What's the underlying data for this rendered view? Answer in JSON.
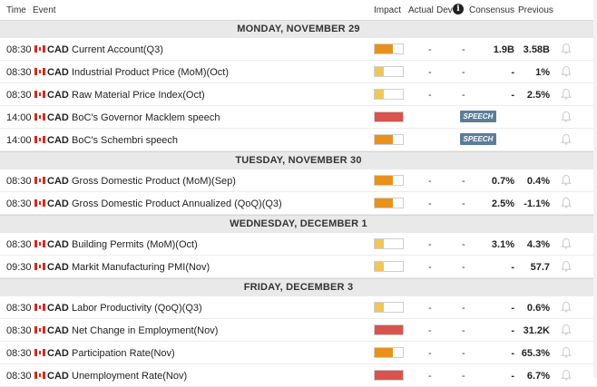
{
  "header": {
    "time": "Time",
    "event": "Event",
    "impact": "Impact",
    "actual": "Actual",
    "dev": "Dev",
    "info_icon": "i",
    "consensus": "Consensus",
    "previous": "Previous"
  },
  "colors": {
    "high": "#d9534f",
    "medium": "#e8921c",
    "low": "#f0c65a",
    "speech_badge": "#5b7d99"
  },
  "days": [
    {
      "label": "MONDAY, NOVEMBER 29",
      "events": [
        {
          "time": "08:30",
          "currency": "CAD",
          "name": "Current Account(Q3)",
          "impact": "medium",
          "impact_level": 0.66,
          "actual": "-",
          "dev": "-",
          "consensus": "1.9B",
          "previous": "3.58B"
        },
        {
          "time": "08:30",
          "currency": "CAD",
          "name": "Industrial Product Price (MoM)(Oct)",
          "impact": "low",
          "impact_level": 0.33,
          "actual": "-",
          "dev": "-",
          "consensus": "-",
          "previous": "1%"
        },
        {
          "time": "08:30",
          "currency": "CAD",
          "name": "Raw Material Price Index(Oct)",
          "impact": "low",
          "impact_level": 0.33,
          "actual": "-",
          "dev": "-",
          "consensus": "-",
          "previous": "2.5%"
        },
        {
          "time": "14:00",
          "currency": "CAD",
          "name": "BoC's Governor Macklem speech",
          "impact": "high",
          "impact_level": 1.0,
          "actual": "",
          "dev": "",
          "speech": "SPEECH",
          "consensus": "",
          "previous": ""
        },
        {
          "time": "14:00",
          "currency": "CAD",
          "name": "BoC's Schembri speech",
          "impact": "medium",
          "impact_level": 0.66,
          "actual": "",
          "dev": "",
          "speech": "SPEECH",
          "consensus": "",
          "previous": ""
        }
      ]
    },
    {
      "label": "TUESDAY, NOVEMBER 30",
      "events": [
        {
          "time": "08:30",
          "currency": "CAD",
          "name": "Gross Domestic Product (MoM)(Sep)",
          "impact": "medium",
          "impact_level": 0.66,
          "actual": "-",
          "dev": "-",
          "consensus": "0.7%",
          "previous": "0.4%"
        },
        {
          "time": "08:30",
          "currency": "CAD",
          "name": "Gross Domestic Product Annualized (QoQ)(Q3)",
          "impact": "medium",
          "impact_level": 0.66,
          "actual": "-",
          "dev": "-",
          "consensus": "2.5%",
          "previous": "-1.1%"
        }
      ]
    },
    {
      "label": "WEDNESDAY, DECEMBER 1",
      "events": [
        {
          "time": "08:30",
          "currency": "CAD",
          "name": "Building Permits (MoM)(Oct)",
          "impact": "low",
          "impact_level": 0.33,
          "actual": "-",
          "dev": "-",
          "consensus": "3.1%",
          "previous": "4.3%"
        },
        {
          "time": "09:30",
          "currency": "CAD",
          "name": "Markit Manufacturing PMI(Nov)",
          "impact": "low",
          "impact_level": 0.33,
          "actual": "-",
          "dev": "-",
          "consensus": "-",
          "previous": "57.7"
        }
      ]
    },
    {
      "label": "FRIDAY, DECEMBER 3",
      "events": [
        {
          "time": "08:30",
          "currency": "CAD",
          "name": "Labor Productivity (QoQ)(Q3)",
          "impact": "low",
          "impact_level": 0.33,
          "actual": "-",
          "dev": "-",
          "consensus": "-",
          "previous": "0.6%"
        },
        {
          "time": "08:30",
          "currency": "CAD",
          "name": "Net Change in Employment(Nov)",
          "impact": "high",
          "impact_level": 1.0,
          "actual": "-",
          "dev": "-",
          "consensus": "-",
          "previous": "31.2K"
        },
        {
          "time": "08:30",
          "currency": "CAD",
          "name": "Participation Rate(Nov)",
          "impact": "medium",
          "impact_level": 0.66,
          "actual": "-",
          "dev": "-",
          "consensus": "-",
          "previous": "65.3%"
        },
        {
          "time": "08:30",
          "currency": "CAD",
          "name": "Unemployment Rate(Nov)",
          "impact": "high",
          "impact_level": 1.0,
          "actual": "-",
          "dev": "-",
          "consensus": "-",
          "previous": "6.7%"
        }
      ]
    }
  ]
}
